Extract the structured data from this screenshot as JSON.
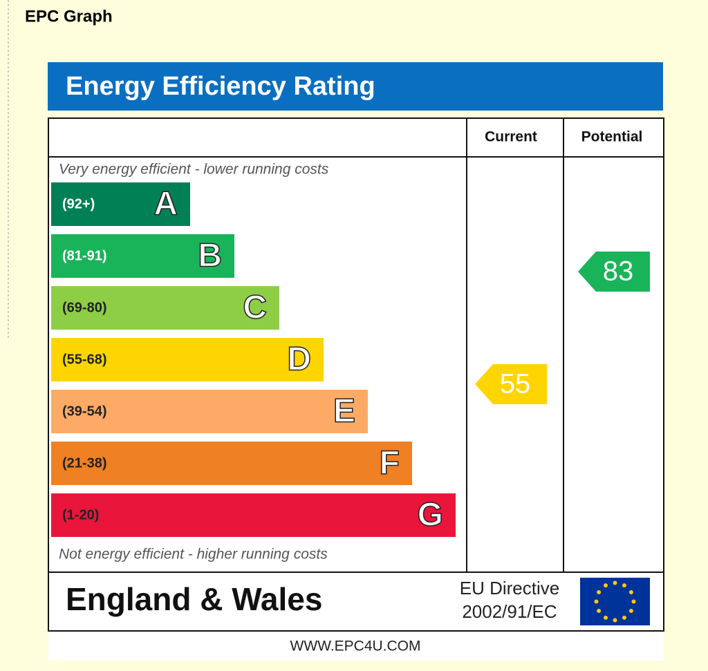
{
  "heading": "EPC Graph",
  "title": "Energy Efficiency Rating",
  "columns": [
    "Current",
    "Potential"
  ],
  "top_note": "Very energy efficient - lower running costs",
  "bottom_note": "Not energy efficient - higher running costs",
  "bands": [
    {
      "range": "(92+)",
      "letter": "A",
      "color": "#008054",
      "text_color": "#ffffff"
    },
    {
      "range": "(81-91)",
      "letter": "B",
      "color": "#19b459",
      "text_color": "#ffffff"
    },
    {
      "range": "(69-80)",
      "letter": "C",
      "color": "#8dce46",
      "text_color": "#222222"
    },
    {
      "range": "(55-68)",
      "letter": "D",
      "color": "#ffd500",
      "text_color": "#222222"
    },
    {
      "range": "(39-54)",
      "letter": "E",
      "color": "#fcaa65",
      "text_color": "#222222"
    },
    {
      "range": "(21-38)",
      "letter": "F",
      "color": "#ef8023",
      "text_color": "#222222"
    },
    {
      "range": "(1-20)",
      "letter": "G",
      "color": "#e9153b",
      "text_color": "#222222"
    }
  ],
  "ratings": {
    "current": 55,
    "potential": 83
  },
  "footer": {
    "region": "England & Wales",
    "directive": "EU Directive",
    "directive_code": "2002/91/EC"
  },
  "url": "WWW.EPC4U.COM"
}
